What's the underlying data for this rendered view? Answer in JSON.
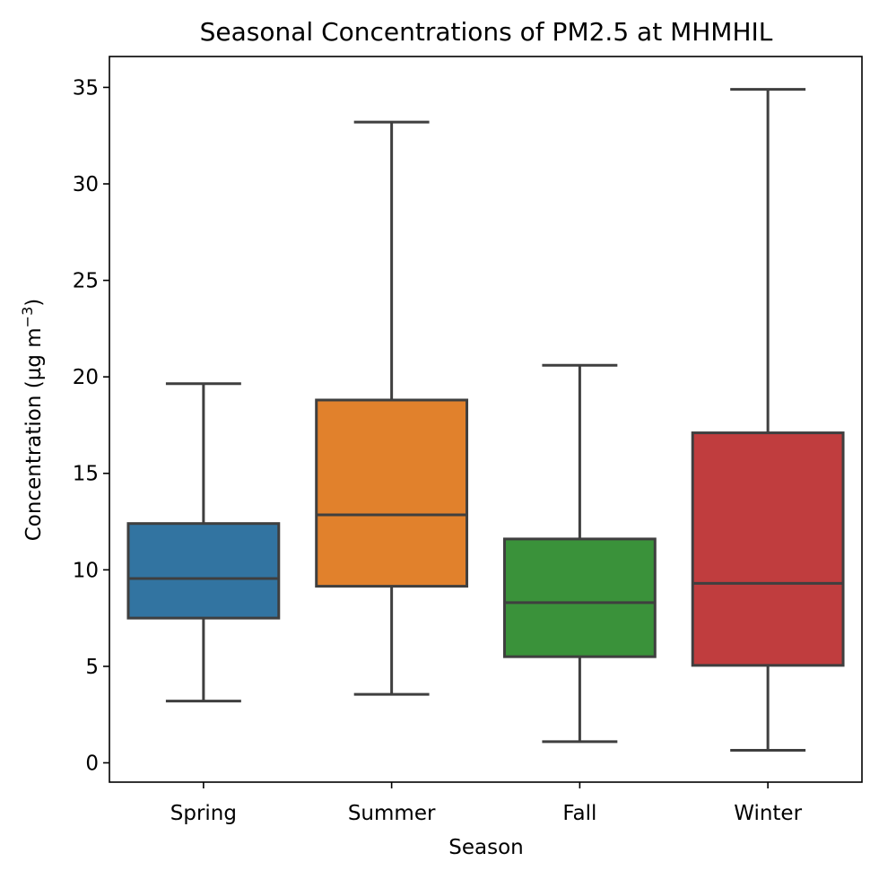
{
  "chart_data": {
    "type": "box",
    "title": "Seasonal Concentrations of PM2.5 at MHMHIL",
    "xlabel": "Season",
    "ylabel": "Concentration (µg m",
    "ylabel_superscript": "−3",
    "ylabel_suffix": ")",
    "ylim": [
      -1,
      36.6
    ],
    "yticks": [
      0,
      5,
      10,
      15,
      20,
      25,
      30,
      35
    ],
    "grid": false,
    "categories": [
      "Spring",
      "Summer",
      "Fall",
      "Winter"
    ],
    "boxes": [
      {
        "category": "Spring",
        "whisker_low": 3.2,
        "q1": 7.5,
        "median": 9.55,
        "q3": 12.4,
        "whisker_high": 19.65,
        "color": "#3274a1"
      },
      {
        "category": "Summer",
        "whisker_low": 3.55,
        "q1": 9.15,
        "median": 12.85,
        "q3": 18.8,
        "whisker_high": 33.2,
        "color": "#e1812c"
      },
      {
        "category": "Fall",
        "whisker_low": 1.1,
        "q1": 5.5,
        "median": 8.3,
        "q3": 11.6,
        "whisker_high": 20.6,
        "color": "#3a923a"
      },
      {
        "category": "Winter",
        "whisker_low": 0.65,
        "q1": 5.05,
        "median": 9.3,
        "q3": 17.1,
        "whisker_high": 34.9,
        "color": "#c03d3e"
      }
    ],
    "line_color": "#3f3f3f"
  }
}
